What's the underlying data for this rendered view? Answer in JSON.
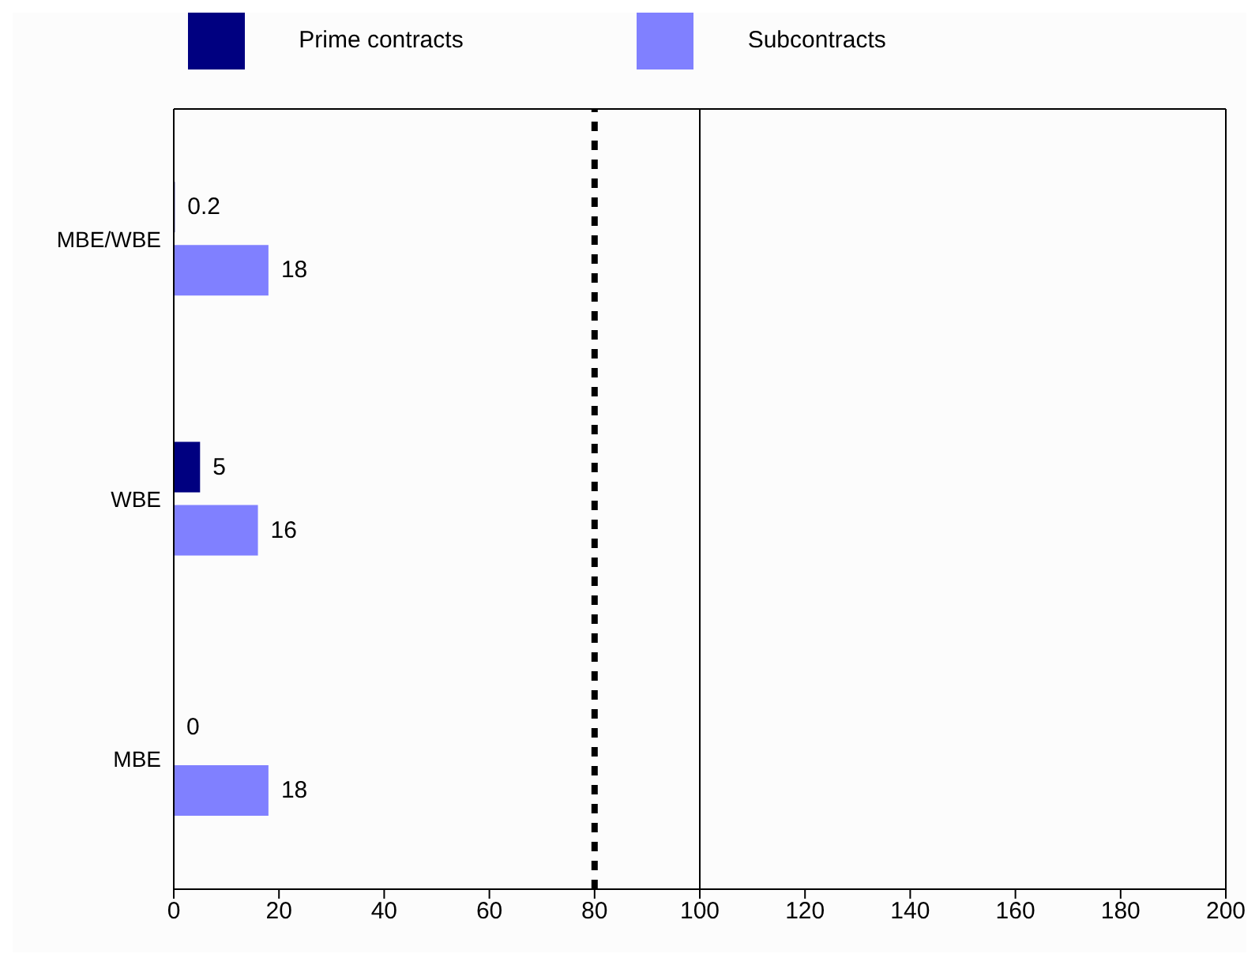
{
  "chart_data": {
    "type": "bar",
    "orientation": "horizontal",
    "categories": [
      "MBE/WBE",
      "WBE",
      "MBE"
    ],
    "series": [
      {
        "name": "Prime contracts",
        "color": "#000080",
        "values": [
          0.2,
          5,
          0
        ]
      },
      {
        "name": "Subcontracts",
        "color": "#8080ff",
        "values": [
          18,
          16,
          18
        ]
      }
    ],
    "xlim": [
      0,
      200
    ],
    "xticks": [
      0,
      20,
      40,
      60,
      80,
      100,
      120,
      140,
      160,
      180,
      200
    ],
    "ref_lines": [
      {
        "axis": "x",
        "value": 80,
        "line_style": "dotted",
        "color": "#000000"
      },
      {
        "axis": "x",
        "value": 100,
        "line_style": "solid",
        "color": "#000000"
      }
    ],
    "data_labels": true,
    "legend": "top",
    "grid": false
  }
}
